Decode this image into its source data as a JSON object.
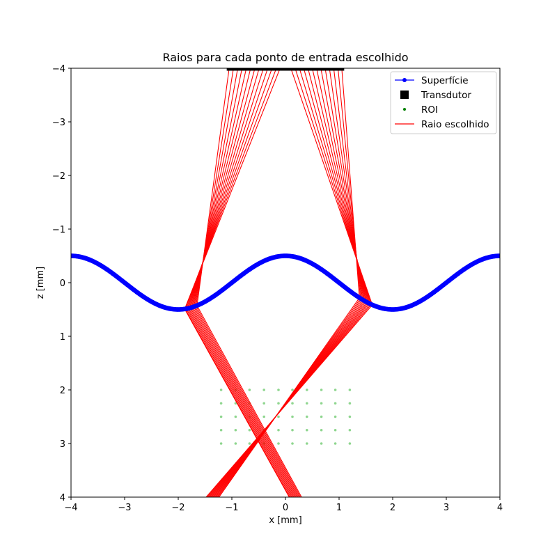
{
  "chart_data": {
    "type": "line",
    "title": "Raios para cada ponto de entrada escolhido",
    "xlabel": "x [mm]",
    "ylabel": "z [mm]",
    "xlim": [
      -4,
      4
    ],
    "ylim": [
      -4,
      4
    ],
    "y_inverted": true,
    "grid": false,
    "legend_position": "top-right",
    "x_ticks": [
      "−4",
      "−3",
      "−2",
      "−1",
      "0",
      "1",
      "2",
      "3",
      "4"
    ],
    "y_ticks": [
      "−4",
      "−3",
      "−2",
      "−1",
      "0",
      "1",
      "2",
      "3",
      "4"
    ],
    "legend": [
      "Superfície",
      "Transdutor",
      "ROI",
      "Raio escolhido"
    ],
    "colors": {
      "surface": "#0000ff",
      "transducer": "#000000",
      "roi": "#8fd68f",
      "ray": "#ff0000"
    },
    "surface": {
      "name": "Superfície",
      "function": "z = -0.5*cos(pi*x/2)",
      "x_range": [
        -4,
        4
      ],
      "marker": "circle"
    },
    "transducer": {
      "name": "Transdutor",
      "z": -4,
      "x_start": -1.05,
      "x_end": 1.05,
      "marker": "square"
    },
    "roi": {
      "name": "ROI",
      "x": [
        -1.2,
        -0.93,
        -0.67,
        -0.4,
        -0.13,
        0.13,
        0.4,
        0.67,
        0.93,
        1.2
      ],
      "z": [
        2.0,
        2.25,
        2.5,
        2.75,
        3.0
      ],
      "marker": "dot"
    },
    "rays": {
      "name": "Raio escolhido",
      "target": [
        -0.4,
        2.5
      ],
      "bottom_z": 4,
      "group_a": {
        "transducer_x": [
          -1.05,
          -0.97,
          -0.89,
          -0.81,
          -0.73,
          -0.65,
          -0.57,
          -0.49,
          -0.41,
          -0.33,
          -0.25,
          -0.17,
          -0.1
        ],
        "entry_x": [
          -1.65,
          -1.67,
          -1.69,
          -1.71,
          -1.73,
          -1.75,
          -1.77,
          -1.79,
          -1.81,
          -1.83,
          -1.85,
          -1.87,
          -1.88
        ],
        "exit_x": [
          0.3,
          0.28,
          0.26,
          0.24,
          0.22,
          0.2,
          0.18,
          0.16,
          0.14,
          0.12,
          0.1,
          0.08,
          0.07
        ]
      },
      "group_b": {
        "transducer_x": [
          0.1,
          0.18,
          0.26,
          0.34,
          0.42,
          0.5,
          0.58,
          0.66,
          0.74,
          0.82,
          0.9,
          0.98,
          1.05
        ],
        "entry_x": [
          1.62,
          1.6,
          1.58,
          1.56,
          1.54,
          1.52,
          1.5,
          1.48,
          1.46,
          1.44,
          1.42,
          1.4,
          1.38
        ],
        "exit_x": [
          -1.48,
          -1.46,
          -1.44,
          -1.42,
          -1.4,
          -1.38,
          -1.36,
          -1.34,
          -1.32,
          -1.3,
          -1.28,
          -1.26,
          -1.24
        ]
      }
    }
  }
}
